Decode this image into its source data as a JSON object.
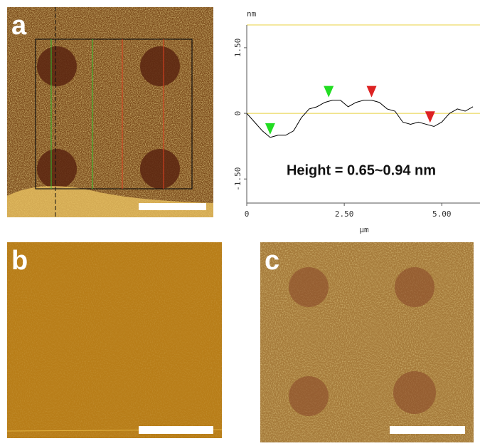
{
  "panels": [
    {
      "label": "a"
    },
    {
      "label": "b"
    },
    {
      "label": "c"
    }
  ],
  "chart_data": {
    "type": "line",
    "ylabel": "nm",
    "xlabel": "µm",
    "annotation": "Height = 0.65~0.94 nm",
    "xlim": [
      0,
      5.98
    ],
    "ylim": [
      -2.05,
      2.02
    ],
    "xticks": [
      0,
      {
        "value": 2.5,
        "label": "2.50"
      },
      {
        "value": 5,
        "label": "5.00"
      }
    ],
    "yticks": [
      {
        "value": 1.5,
        "label": "1.50"
      },
      0,
      {
        "value": -1.5,
        "label": "-1.50"
      }
    ],
    "x": [
      0,
      0.2,
      0.4,
      0.6,
      0.8,
      1.0,
      1.2,
      1.4,
      1.6,
      1.8,
      2.0,
      2.2,
      2.4,
      2.6,
      2.8,
      3.0,
      3.2,
      3.4,
      3.6,
      3.8,
      4.0,
      4.2,
      4.4,
      4.6,
      4.8,
      5.0,
      5.2,
      5.4,
      5.6,
      5.8
    ],
    "series": [
      {
        "color": "#000000",
        "values": [
          0,
          -0.2,
          -0.4,
          -0.55,
          -0.5,
          -0.5,
          -0.4,
          -0.1,
          0.1,
          0.15,
          0.25,
          0.3,
          0.3,
          0.15,
          0.25,
          0.3,
          0.3,
          0.25,
          0.1,
          0.05,
          -0.2,
          -0.25,
          -0.2,
          -0.25,
          -0.3,
          -0.2,
          0,
          0.1,
          0.05,
          0.15
        ]
      }
    ],
    "markers": [
      {
        "x": 0.6,
        "y": -0.55,
        "color": "#22dd22"
      },
      {
        "x": 2.1,
        "y": 0.3,
        "color": "#22dd22"
      },
      {
        "x": 3.2,
        "y": 0.3,
        "color": "#dd2222"
      },
      {
        "x": 4.7,
        "y": -0.28,
        "color": "#dd2222"
      }
    ]
  }
}
